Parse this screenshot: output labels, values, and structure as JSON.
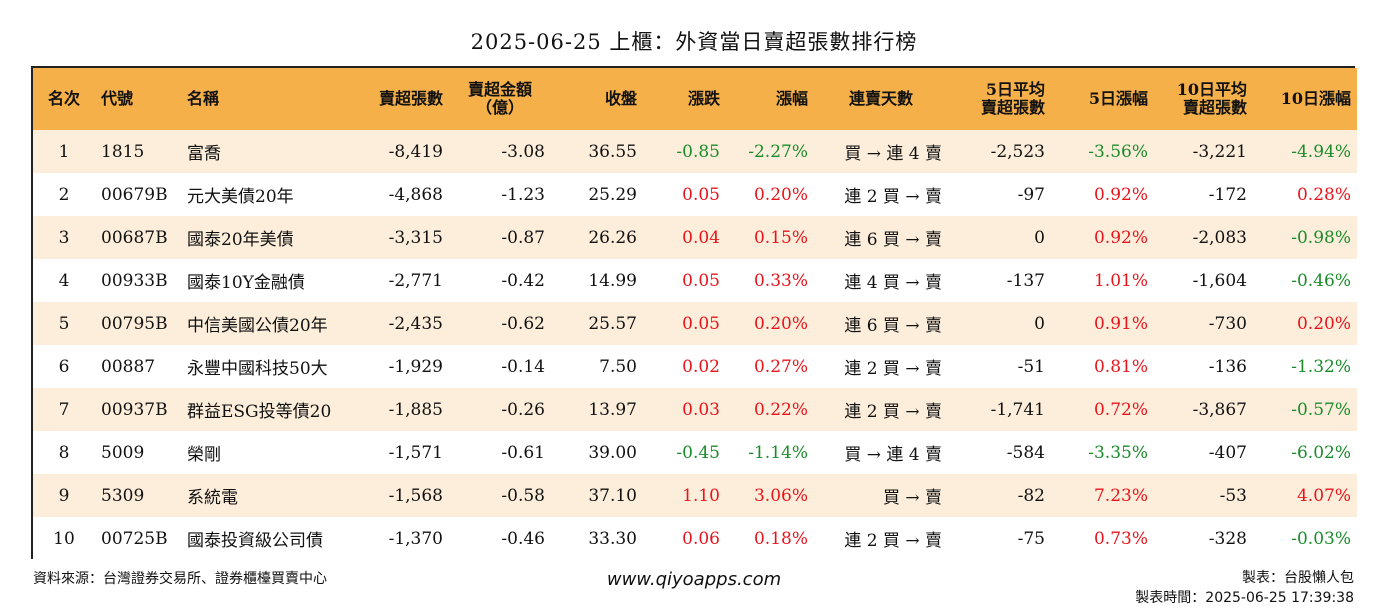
{
  "title": "2025-06-25 上櫃：外資當日賣超張數排行榜",
  "columns": {
    "rank": "名次",
    "code": "代號",
    "name": "名稱",
    "sell_qty": "賣超張數",
    "sell_amt_1": "賣超金額",
    "sell_amt_2": "（億）",
    "close": "收盤",
    "change": "漲跌",
    "pct": "漲幅",
    "streak": "連賣天數",
    "avg5_1": "5日平均",
    "avg5_2": "賣超張數",
    "pct5": "5日漲幅",
    "avg10_1": "10日平均",
    "avg10_2": "賣超張數",
    "pct10": "10日漲幅"
  },
  "rows": [
    {
      "rank": "1",
      "code": "1815",
      "name": "富喬",
      "sell_qty": "-8,419",
      "sell_amt": "-3.08",
      "close": "36.55",
      "change": "-0.85",
      "change_dir": "down",
      "pct": "-2.27%",
      "pct_dir": "down",
      "streak": "買 → 連 4 賣",
      "avg5": "-2,523",
      "pct5": "-3.56%",
      "pct5_dir": "down",
      "avg10": "-3,221",
      "pct10": "-4.94%",
      "pct10_dir": "down"
    },
    {
      "rank": "2",
      "code": "00679B",
      "name": "元大美債20年",
      "sell_qty": "-4,868",
      "sell_amt": "-1.23",
      "close": "25.29",
      "change": "0.05",
      "change_dir": "up",
      "pct": "0.20%",
      "pct_dir": "up",
      "streak": "連 2 買 → 賣",
      "avg5": "-97",
      "pct5": "0.92%",
      "pct5_dir": "up",
      "avg10": "-172",
      "pct10": "0.28%",
      "pct10_dir": "up"
    },
    {
      "rank": "3",
      "code": "00687B",
      "name": "國泰20年美債",
      "sell_qty": "-3,315",
      "sell_amt": "-0.87",
      "close": "26.26",
      "change": "0.04",
      "change_dir": "up",
      "pct": "0.15%",
      "pct_dir": "up",
      "streak": "連 6 買 → 賣",
      "avg5": "0",
      "pct5": "0.92%",
      "pct5_dir": "up",
      "avg10": "-2,083",
      "pct10": "-0.98%",
      "pct10_dir": "down"
    },
    {
      "rank": "4",
      "code": "00933B",
      "name": "國泰10Y金融債",
      "sell_qty": "-2,771",
      "sell_amt": "-0.42",
      "close": "14.99",
      "change": "0.05",
      "change_dir": "up",
      "pct": "0.33%",
      "pct_dir": "up",
      "streak": "連 4 買 → 賣",
      "avg5": "-137",
      "pct5": "1.01%",
      "pct5_dir": "up",
      "avg10": "-1,604",
      "pct10": "-0.46%",
      "pct10_dir": "down"
    },
    {
      "rank": "5",
      "code": "00795B",
      "name": "中信美國公債20年",
      "sell_qty": "-2,435",
      "sell_amt": "-0.62",
      "close": "25.57",
      "change": "0.05",
      "change_dir": "up",
      "pct": "0.20%",
      "pct_dir": "up",
      "streak": "連 6 買 → 賣",
      "avg5": "0",
      "pct5": "0.91%",
      "pct5_dir": "up",
      "avg10": "-730",
      "pct10": "0.20%",
      "pct10_dir": "up"
    },
    {
      "rank": "6",
      "code": "00887",
      "name": "永豐中國科技50大",
      "sell_qty": "-1,929",
      "sell_amt": "-0.14",
      "close": "7.50",
      "change": "0.02",
      "change_dir": "up",
      "pct": "0.27%",
      "pct_dir": "up",
      "streak": "連 2 買 → 賣",
      "avg5": "-51",
      "pct5": "0.81%",
      "pct5_dir": "up",
      "avg10": "-136",
      "pct10": "-1.32%",
      "pct10_dir": "down"
    },
    {
      "rank": "7",
      "code": "00937B",
      "name": "群益ESG投等債20",
      "sell_qty": "-1,885",
      "sell_amt": "-0.26",
      "close": "13.97",
      "change": "0.03",
      "change_dir": "up",
      "pct": "0.22%",
      "pct_dir": "up",
      "streak": "連 2 買 → 賣",
      "avg5": "-1,741",
      "pct5": "0.72%",
      "pct5_dir": "up",
      "avg10": "-3,867",
      "pct10": "-0.57%",
      "pct10_dir": "down"
    },
    {
      "rank": "8",
      "code": "5009",
      "name": "榮剛",
      "sell_qty": "-1,571",
      "sell_amt": "-0.61",
      "close": "39.00",
      "change": "-0.45",
      "change_dir": "down",
      "pct": "-1.14%",
      "pct_dir": "down",
      "streak": "買 → 連 4 賣",
      "avg5": "-584",
      "pct5": "-3.35%",
      "pct5_dir": "down",
      "avg10": "-407",
      "pct10": "-6.02%",
      "pct10_dir": "down"
    },
    {
      "rank": "9",
      "code": "5309",
      "name": "系統電",
      "sell_qty": "-1,568",
      "sell_amt": "-0.58",
      "close": "37.10",
      "change": "1.10",
      "change_dir": "up",
      "pct": "3.06%",
      "pct_dir": "up",
      "streak": "買 → 賣",
      "avg5": "-82",
      "pct5": "7.23%",
      "pct5_dir": "up",
      "avg10": "-53",
      "pct10": "4.07%",
      "pct10_dir": "up"
    },
    {
      "rank": "10",
      "code": "00725B",
      "name": "國泰投資級公司債",
      "sell_qty": "-1,370",
      "sell_amt": "-0.46",
      "close": "33.30",
      "change": "0.06",
      "change_dir": "up",
      "pct": "0.18%",
      "pct_dir": "up",
      "streak": "連 2 買 → 賣",
      "avg5": "-75",
      "pct5": "0.73%",
      "pct5_dir": "up",
      "avg10": "-328",
      "pct10": "-0.03%",
      "pct10_dir": "down"
    }
  ],
  "footer": {
    "source": "資料來源：台灣證券交易所、證券櫃檯買賣中心",
    "website": "www.qiyoapps.com",
    "maker": "製表：台股懶人包",
    "made_time": "製表時間：2025-06-25 17:39:38"
  },
  "colors": {
    "up": "#e8141b",
    "down": "#1a8c2a",
    "header_bg": "#f5b04a",
    "stripe_bg": "#fdeedb"
  }
}
